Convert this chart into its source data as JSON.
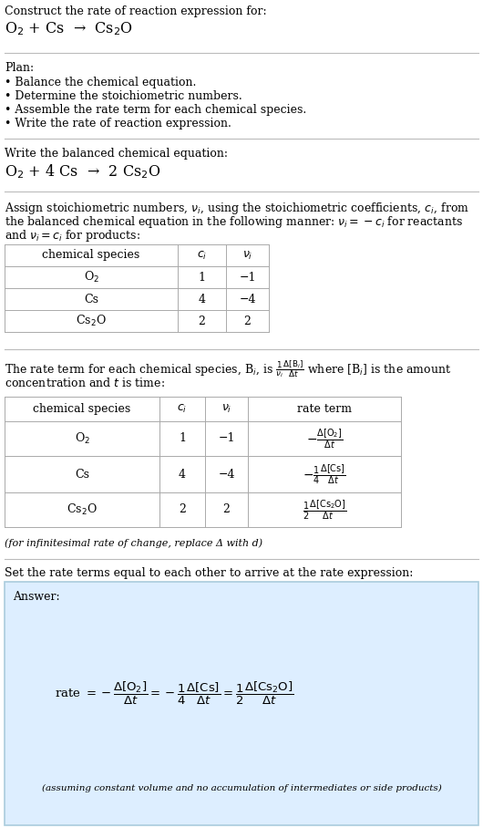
{
  "title_line1": "Construct the rate of reaction expression for:",
  "title_line2": "O$_2$ + Cs  →  Cs$_2$O",
  "plan_header": "Plan:",
  "plan_items": [
    "• Balance the chemical equation.",
    "• Determine the stoichiometric numbers.",
    "• Assemble the rate term for each chemical species.",
    "• Write the rate of reaction expression."
  ],
  "balanced_header": "Write the balanced chemical equation:",
  "balanced_eq": "O$_2$ + 4 Cs  →  2 Cs$_2$O",
  "stoich_intro_parts": [
    "Assign stoichiometric numbers, $\\nu_i$, using the stoichiometric coefficients, $c_i$, from",
    "the balanced chemical equation in the following manner: $\\nu_i = -c_i$ for reactants",
    "and $\\nu_i = c_i$ for products:"
  ],
  "table1_headers": [
    "chemical species",
    "$c_i$",
    "$\\nu_i$"
  ],
  "table1_rows": [
    [
      "O$_2$",
      "1",
      "−1"
    ],
    [
      "Cs",
      "4",
      "−4"
    ],
    [
      "Cs$_2$O",
      "2",
      "2"
    ]
  ],
  "rate_intro_parts": [
    "The rate term for each chemical species, B$_i$, is $\\frac{1}{\\nu_i}\\frac{\\Delta[\\mathrm{B}_i]}{\\Delta t}$ where [B$_i$] is the amount",
    "concentration and $t$ is time:"
  ],
  "table2_headers": [
    "chemical species",
    "$c_i$",
    "$\\nu_i$",
    "rate term"
  ],
  "table2_rows": [
    [
      "O$_2$",
      "1",
      "−1",
      "$-\\frac{\\Delta[\\mathrm{O_2}]}{\\Delta t}$"
    ],
    [
      "Cs",
      "4",
      "−4",
      "$-\\frac{1}{4}\\frac{\\Delta[\\mathrm{Cs}]}{\\Delta t}$"
    ],
    [
      "Cs$_2$O",
      "2",
      "2",
      "$\\frac{1}{2}\\frac{\\Delta[\\mathrm{Cs_2O}]}{\\Delta t}$"
    ]
  ],
  "infinitesimal_note": "(for infinitesimal rate of change, replace Δ with d)",
  "set_rate_text": "Set the rate terms equal to each other to arrive at the rate expression:",
  "answer_label": "Answer:",
  "answer_box_color": "#ddeeff",
  "answer_border_color": "#aaccdd",
  "rate_eq": "rate $= -\\dfrac{\\Delta[\\mathrm{O_2}]}{\\Delta t} = -\\dfrac{1}{4}\\dfrac{\\Delta[\\mathrm{Cs}]}{\\Delta t} = \\dfrac{1}{2}\\dfrac{\\Delta[\\mathrm{Cs_2O}]}{\\Delta t}$",
  "assuming_note": "(assuming constant volume and no accumulation of intermediates or side products)",
  "bg_color": "#ffffff",
  "text_color": "#000000",
  "table_line_color": "#aaaaaa",
  "font_size": 10.5,
  "small_font_size": 9.0
}
